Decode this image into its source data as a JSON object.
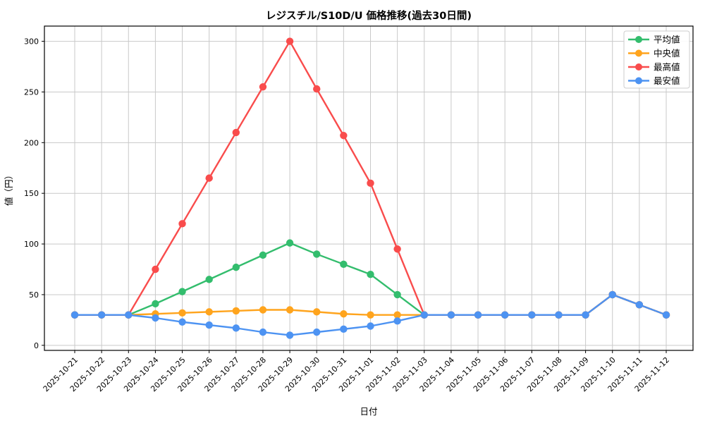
{
  "chart_data": {
    "type": "line",
    "title": "レジスチル/S10D/U 価格推移(過去30日間)",
    "xlabel": "日付",
    "ylabel": "値（円）",
    "categories": [
      "2025-10-21",
      "2025-10-22",
      "2025-10-23",
      "2025-10-24",
      "2025-10-25",
      "2025-10-26",
      "2025-10-27",
      "2025-10-28",
      "2025-10-29",
      "2025-10-30",
      "2025-10-31",
      "2025-11-01",
      "2025-11-02",
      "2025-11-03",
      "2025-11-04",
      "2025-11-05",
      "2025-11-06",
      "2025-11-07",
      "2025-11-08",
      "2025-11-09",
      "2025-11-10",
      "2025-11-11",
      "2025-11-12"
    ],
    "series": [
      {
        "key": "average",
        "name": "平均値",
        "color": "#33bd6d",
        "values": [
          30,
          30,
          30,
          41,
          53,
          65,
          77,
          89,
          101,
          90,
          80,
          70,
          50,
          30,
          30,
          30,
          30,
          30,
          30,
          30,
          50,
          40,
          30
        ]
      },
      {
        "key": "median",
        "name": "中央値",
        "color": "#ffa41d",
        "values": [
          30,
          30,
          30,
          31,
          32,
          33,
          34,
          35,
          35,
          33,
          31,
          30,
          30,
          30,
          30,
          30,
          30,
          30,
          30,
          30,
          50,
          40,
          30
        ]
      },
      {
        "key": "max",
        "name": "最高値",
        "color": "#f94c4c",
        "values": [
          30,
          30,
          30,
          75,
          120,
          165,
          210,
          255,
          300,
          253,
          207,
          160,
          95,
          30,
          30,
          30,
          30,
          30,
          30,
          30,
          50,
          40,
          30
        ]
      },
      {
        "key": "min",
        "name": "最安値",
        "color": "#4d93f2",
        "values": [
          30,
          30,
          30,
          27,
          23,
          20,
          17,
          13,
          10,
          13,
          16,
          19,
          24,
          30,
          30,
          30,
          30,
          30,
          30,
          30,
          50,
          40,
          30
        ]
      }
    ],
    "yticks": [
      0,
      50,
      100,
      150,
      200,
      250,
      300
    ],
    "ylim": [
      -5,
      315
    ],
    "grid": true,
    "grid_color": "#c9c9c9",
    "spine_color": "#000000",
    "background": "#ffffff",
    "legend_position": "top-right"
  }
}
